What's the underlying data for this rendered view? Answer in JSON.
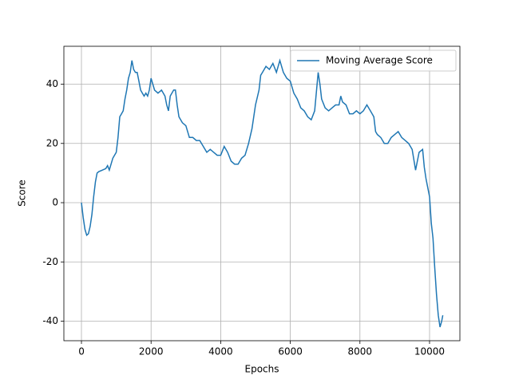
{
  "chart_data": {
    "type": "line",
    "xlabel": "Epochs",
    "ylabel": "Score",
    "xlim": [
      -505,
      10872
    ],
    "ylim": [
      -46.6,
      52.8
    ],
    "xticks": [
      0,
      2000,
      4000,
      6000,
      8000,
      10000
    ],
    "yticks": [
      -40,
      -20,
      0,
      20,
      40
    ],
    "grid": true,
    "legend": "upper right",
    "series": [
      {
        "name": "Moving Average Score",
        "color": "#1f77b4",
        "x": [
          0,
          50,
          100,
          150,
          200,
          250,
          300,
          350,
          400,
          450,
          500,
          600,
          700,
          750,
          800,
          850,
          900,
          1000,
          1050,
          1100,
          1150,
          1200,
          1250,
          1300,
          1350,
          1400,
          1450,
          1500,
          1550,
          1600,
          1650,
          1700,
          1750,
          1800,
          1850,
          1900,
          1950,
          2000,
          2050,
          2100,
          2200,
          2300,
          2400,
          2450,
          2500,
          2550,
          2650,
          2700,
          2750,
          2800,
          2900,
          3000,
          3100,
          3200,
          3300,
          3400,
          3500,
          3600,
          3700,
          3800,
          3900,
          4000,
          4100,
          4200,
          4300,
          4400,
          4500,
          4600,
          4700,
          4800,
          4900,
          5000,
          5100,
          5150,
          5200,
          5300,
          5400,
          5500,
          5600,
          5700,
          5800,
          5900,
          6000,
          6100,
          6200,
          6300,
          6400,
          6500,
          6600,
          6700,
          6800,
          6850,
          6900,
          7000,
          7100,
          7200,
          7300,
          7400,
          7450,
          7500,
          7600,
          7700,
          7800,
          7900,
          8000,
          8100,
          8200,
          8300,
          8400,
          8450,
          8500,
          8600,
          8700,
          8800,
          8900,
          9000,
          9100,
          9200,
          9300,
          9400,
          9500,
          9600,
          9700,
          9800,
          9850,
          9900,
          10000,
          10050,
          10100,
          10150,
          10200,
          10250,
          10300,
          10350,
          10380
        ],
        "values": [
          0,
          -5,
          -9,
          -11,
          -10.5,
          -8,
          -4,
          2,
          7,
          10,
          10.5,
          11,
          11.5,
          12.5,
          11,
          13,
          15,
          17,
          22,
          29,
          30,
          31,
          35,
          38,
          42,
          44,
          48,
          45,
          44,
          44,
          41,
          38,
          37,
          36,
          37,
          36,
          38,
          42,
          40,
          38,
          37,
          38,
          36,
          33,
          31,
          36,
          38,
          38,
          33,
          29,
          27,
          26,
          22,
          22,
          21,
          21,
          19,
          17,
          18,
          17,
          16,
          16,
          19,
          17,
          14,
          13,
          13,
          15,
          16,
          20,
          25,
          33,
          38,
          43,
          44,
          46,
          45,
          47,
          44,
          48,
          44,
          42,
          41,
          37,
          35,
          32,
          31,
          29,
          28,
          31,
          44,
          40,
          35,
          32,
          31,
          32,
          33,
          33,
          36,
          34,
          33,
          30,
          30,
          31,
          30,
          31,
          33,
          31,
          29,
          24,
          23,
          22,
          20,
          20,
          22,
          23,
          24,
          22,
          21,
          20,
          18,
          11,
          17,
          18,
          12,
          8,
          2,
          -7,
          -12,
          -22,
          -31,
          -38,
          -42,
          -40,
          -38
        ]
      }
    ]
  }
}
